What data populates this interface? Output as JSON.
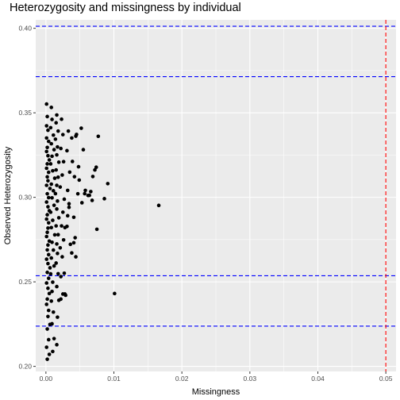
{
  "chart_data": {
    "type": "scatter",
    "title": "Heterozygosity and missingness by individual",
    "xlabel": "Missingness",
    "ylabel": "Observed Heterozygosity",
    "xlim": [
      -0.0015,
      0.0515
    ],
    "ylim": [
      0.197,
      0.405
    ],
    "xticks": [
      0,
      0.01,
      0.02,
      0.03,
      0.04,
      0.05
    ],
    "xtick_labels": [
      "0.00",
      "0.01",
      "0.02",
      "0.03",
      "0.04",
      "0.05"
    ],
    "yticks": [
      0.2,
      0.25,
      0.3,
      0.35,
      0.4
    ],
    "ytick_labels": [
      "0.20",
      "0.25",
      "0.30",
      "0.35",
      "0.40"
    ],
    "grid": true,
    "background_color": "#ebebeb",
    "point_color": "#000000",
    "reference_lines": [
      {
        "axis": "y",
        "value": 0.4012,
        "color": "#0000ff",
        "style": "dashed"
      },
      {
        "axis": "y",
        "value": 0.3714,
        "color": "#0000ff",
        "style": "dashed"
      },
      {
        "axis": "y",
        "value": 0.2536,
        "color": "#0000ff",
        "style": "dashed"
      },
      {
        "axis": "y",
        "value": 0.2238,
        "color": "#0000ff",
        "style": "dashed"
      },
      {
        "axis": "x",
        "value": 0.05,
        "color": "#ff0000",
        "style": "dashed"
      }
    ],
    "points": [
      [
        0.0001,
        0.3552
      ],
      [
        0.0002,
        0.3478
      ],
      [
        0.0001,
        0.3423
      ],
      [
        0.0003,
        0.3397
      ],
      [
        0.0001,
        0.3351
      ],
      [
        0.0004,
        0.3331
      ],
      [
        0.0002,
        0.3295
      ],
      [
        0.0001,
        0.3271
      ],
      [
        0.0003,
        0.3246
      ],
      [
        0.0005,
        0.3221
      ],
      [
        0.0002,
        0.3198
      ],
      [
        0.0001,
        0.3172
      ],
      [
        0.0004,
        0.3148
      ],
      [
        0.0002,
        0.3121
      ],
      [
        0.0003,
        0.3098
      ],
      [
        0.0001,
        0.3071
      ],
      [
        0.0006,
        0.3052
      ],
      [
        0.0002,
        0.3021
      ],
      [
        0.0004,
        0.2998
      ],
      [
        0.0001,
        0.2972
      ],
      [
        0.0003,
        0.2944
      ],
      [
        0.0005,
        0.2921
      ],
      [
        0.0002,
        0.2897
      ],
      [
        0.0001,
        0.2871
      ],
      [
        0.0004,
        0.2849
      ],
      [
        0.0003,
        0.2818
      ],
      [
        0.0002,
        0.2793
      ],
      [
        0.0001,
        0.2768
      ],
      [
        0.0005,
        0.2741
      ],
      [
        0.0003,
        0.2718
      ],
      [
        0.0002,
        0.2689
      ],
      [
        0.0004,
        0.2661
      ],
      [
        0.0001,
        0.2634
      ],
      [
        0.0003,
        0.2608
      ],
      [
        0.0006,
        0.2583
      ],
      [
        0.0002,
        0.2556
      ],
      [
        0.0004,
        0.2521
      ],
      [
        0.0001,
        0.2493
      ],
      [
        0.0003,
        0.2462
      ],
      [
        0.0005,
        0.2431
      ],
      [
        0.0002,
        0.2398
      ],
      [
        0.0001,
        0.2367
      ],
      [
        0.0004,
        0.2331
      ],
      [
        0.0003,
        0.2295
      ],
      [
        0.0006,
        0.2248
      ],
      [
        0.0002,
        0.2221
      ],
      [
        0.0004,
        0.2158
      ],
      [
        0.0001,
        0.2113
      ],
      [
        0.0005,
        0.2071
      ],
      [
        0.0002,
        0.2042
      ],
      [
        0.0008,
        0.3532
      ],
      [
        0.0009,
        0.3461
      ],
      [
        0.0007,
        0.3412
      ],
      [
        0.0011,
        0.3368
      ],
      [
        0.0008,
        0.3317
      ],
      [
        0.0012,
        0.3282
      ],
      [
        0.0009,
        0.3243
      ],
      [
        0.0007,
        0.3198
      ],
      [
        0.001,
        0.3157
      ],
      [
        0.0013,
        0.3113
      ],
      [
        0.0008,
        0.3078
      ],
      [
        0.0011,
        0.3039
      ],
      [
        0.0009,
        0.2997
      ],
      [
        0.0012,
        0.2953
      ],
      [
        0.0007,
        0.2912
      ],
      [
        0.001,
        0.2864
      ],
      [
        0.0008,
        0.2821
      ],
      [
        0.0013,
        0.2778
      ],
      [
        0.0009,
        0.2734
      ],
      [
        0.0011,
        0.2688
      ],
      [
        0.0008,
        0.2641
      ],
      [
        0.0012,
        0.2594
      ],
      [
        0.0007,
        0.2547
      ],
      [
        0.001,
        0.2498
      ],
      [
        0.0009,
        0.2443
      ],
      [
        0.0008,
        0.2386
      ],
      [
        0.0011,
        0.2321
      ],
      [
        0.0009,
        0.2252
      ],
      [
        0.0012,
        0.2164
      ],
      [
        0.001,
        0.2088
      ],
      [
        0.0016,
        0.3487
      ],
      [
        0.0015,
        0.3441
      ],
      [
        0.0018,
        0.3392
      ],
      [
        0.0014,
        0.3344
      ],
      [
        0.0017,
        0.3298
      ],
      [
        0.0016,
        0.3251
      ],
      [
        0.0019,
        0.3208
      ],
      [
        0.0015,
        0.3162
      ],
      [
        0.0018,
        0.3119
      ],
      [
        0.0016,
        0.3071
      ],
      [
        0.0014,
        0.3022
      ],
      [
        0.0017,
        0.2978
      ],
      [
        0.0016,
        0.2931
      ],
      [
        0.0019,
        0.2879
      ],
      [
        0.0015,
        0.2831
      ],
      [
        0.0018,
        0.2779
      ],
      [
        0.0016,
        0.2724
      ],
      [
        0.0017,
        0.2668
      ],
      [
        0.0015,
        0.2611
      ],
      [
        0.0018,
        0.2548
      ],
      [
        0.0016,
        0.2472
      ],
      [
        0.0019,
        0.2391
      ],
      [
        0.0017,
        0.2291
      ],
      [
        0.0016,
        0.2128
      ],
      [
        0.0023,
        0.3462
      ],
      [
        0.0025,
        0.3371
      ],
      [
        0.0022,
        0.3289
      ],
      [
        0.0026,
        0.3211
      ],
      [
        0.0024,
        0.3132
      ],
      [
        0.0021,
        0.3061
      ],
      [
        0.0027,
        0.2989
      ],
      [
        0.0025,
        0.2912
      ],
      [
        0.0023,
        0.2831
      ],
      [
        0.0026,
        0.2748
      ],
      [
        0.0024,
        0.2648
      ],
      [
        0.0022,
        0.2531
      ],
      [
        0.0025,
        0.2428
      ],
      [
        0.0022,
        0.2398
      ],
      [
        0.0033,
        0.3392
      ],
      [
        0.0031,
        0.3276
      ],
      [
        0.0035,
        0.3149
      ],
      [
        0.0032,
        0.3041
      ],
      [
        0.0034,
        0.2941
      ],
      [
        0.0031,
        0.2828
      ],
      [
        0.0036,
        0.2722
      ],
      [
        0.0038,
        0.2671
      ],
      [
        0.0039,
        0.3212
      ],
      [
        0.0038,
        0.3351
      ],
      [
        0.0042,
        0.3122
      ],
      [
        0.0041,
        0.2882
      ],
      [
        0.0043,
        0.2761
      ],
      [
        0.0044,
        0.2648
      ],
      [
        0.0044,
        0.3362
      ],
      [
        0.0047,
        0.3021
      ],
      [
        0.0048,
        0.3181
      ],
      [
        0.0052,
        0.3409
      ],
      [
        0.0055,
        0.3282
      ],
      [
        0.0057,
        0.3022
      ],
      [
        0.0062,
        0.3011
      ],
      [
        0.0066,
        0.3034
      ],
      [
        0.0068,
        0.2982
      ],
      [
        0.0069,
        0.3123
      ],
      [
        0.0072,
        0.3162
      ],
      [
        0.0074,
        0.3178
      ],
      [
        0.0075,
        0.2811
      ],
      [
        0.0077,
        0.3361
      ],
      [
        0.0086,
        0.2992
      ],
      [
        0.0091,
        0.3081
      ],
      [
        0.0101,
        0.2431
      ],
      [
        0.0166,
        0.2952
      ],
      [
        0.0045,
        0.3372
      ],
      [
        0.0034,
        0.2962
      ],
      [
        0.0032,
        0.2891
      ],
      [
        0.0027,
        0.2551
      ],
      [
        0.0029,
        0.2421
      ],
      [
        0.0028,
        0.2821
      ],
      [
        0.0021,
        0.2701
      ],
      [
        0.0058,
        0.3041
      ],
      [
        0.0064,
        0.3012
      ],
      [
        0.0053,
        0.2968
      ],
      [
        0.0049,
        0.3102
      ],
      [
        0.0041,
        0.2731
      ],
      [
        0.0028,
        0.2428
      ]
    ]
  }
}
